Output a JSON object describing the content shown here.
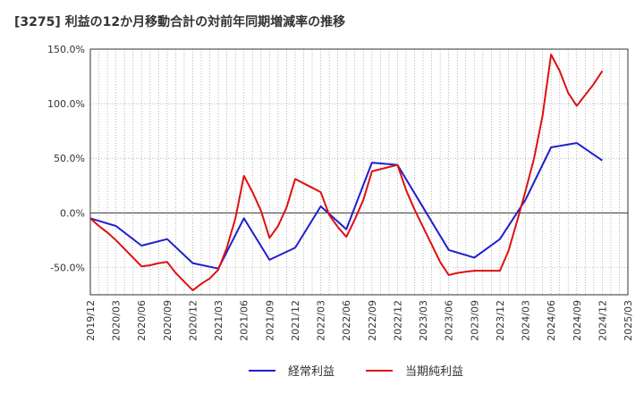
{
  "chart_data": {
    "type": "line",
    "title": "[3275]  利益の12か月移動合計の対前年同期増減率の推移",
    "xlabel": "",
    "ylabel": "",
    "ylim": [
      -75,
      150
    ],
    "yticks": [
      -50,
      0,
      50,
      100,
      150
    ],
    "ytick_labels": [
      "-50.0%",
      "0.0%",
      "50.0%",
      "100.0%",
      "150.0%"
    ],
    "xtick_labels": [
      "2019/12",
      "2020/03",
      "2020/06",
      "2020/09",
      "2020/12",
      "2021/03",
      "2021/06",
      "2021/09",
      "2021/12",
      "2022/03",
      "2022/06",
      "2022/09",
      "2022/12",
      "2023/03",
      "2023/06",
      "2023/09",
      "2023/12",
      "2024/03",
      "2024/06",
      "2024/09",
      "2024/12",
      "2025/03"
    ],
    "grid": true,
    "legend_position": "bottom",
    "x_index_max": 63,
    "series": [
      {
        "name": "経常利益",
        "color": "#1f1fcc",
        "x": [
          0,
          3,
          6,
          9,
          12,
          15,
          18,
          21,
          24,
          27,
          30,
          33,
          36,
          39,
          42,
          45,
          48,
          51,
          54,
          57,
          60
        ],
        "values": [
          -5,
          -12,
          -30,
          -24,
          -46,
          -51,
          -5,
          -43,
          -32,
          6,
          -15,
          46,
          44,
          5,
          -34,
          -41,
          -24,
          12,
          60,
          64,
          48
        ]
      },
      {
        "name": "当期純利益",
        "color": "#dd1111",
        "x": [
          0,
          1,
          2,
          3,
          4,
          5,
          6,
          7,
          8,
          9,
          10,
          11,
          12,
          13,
          14,
          15,
          16,
          17,
          18,
          19,
          20,
          21,
          22,
          23,
          24,
          25,
          26,
          27,
          28,
          29,
          30,
          31,
          32,
          33,
          34,
          35,
          36,
          37,
          38,
          39,
          40,
          41,
          42,
          43,
          44,
          45,
          46,
          47,
          48,
          49,
          50,
          51,
          52,
          53,
          54,
          55,
          56,
          57,
          58,
          59,
          60
        ],
        "values": [
          -5,
          -12,
          -18,
          -25,
          -33,
          -41,
          -49,
          -48,
          -46,
          -45,
          -55,
          -63,
          -71,
          -65,
          -60,
          -52,
          -32,
          -5,
          34,
          19,
          2,
          -23,
          -12,
          5,
          31,
          27,
          23,
          19,
          -2,
          -13,
          -22,
          -6,
          12,
          38,
          40,
          42,
          44,
          21,
          3,
          -13,
          -29,
          -45,
          -57,
          -55,
          -54,
          -53,
          -53,
          -53,
          -53,
          -35,
          -8,
          20,
          50,
          89,
          145,
          130,
          110,
          98,
          108,
          118,
          130
        ]
      }
    ]
  }
}
